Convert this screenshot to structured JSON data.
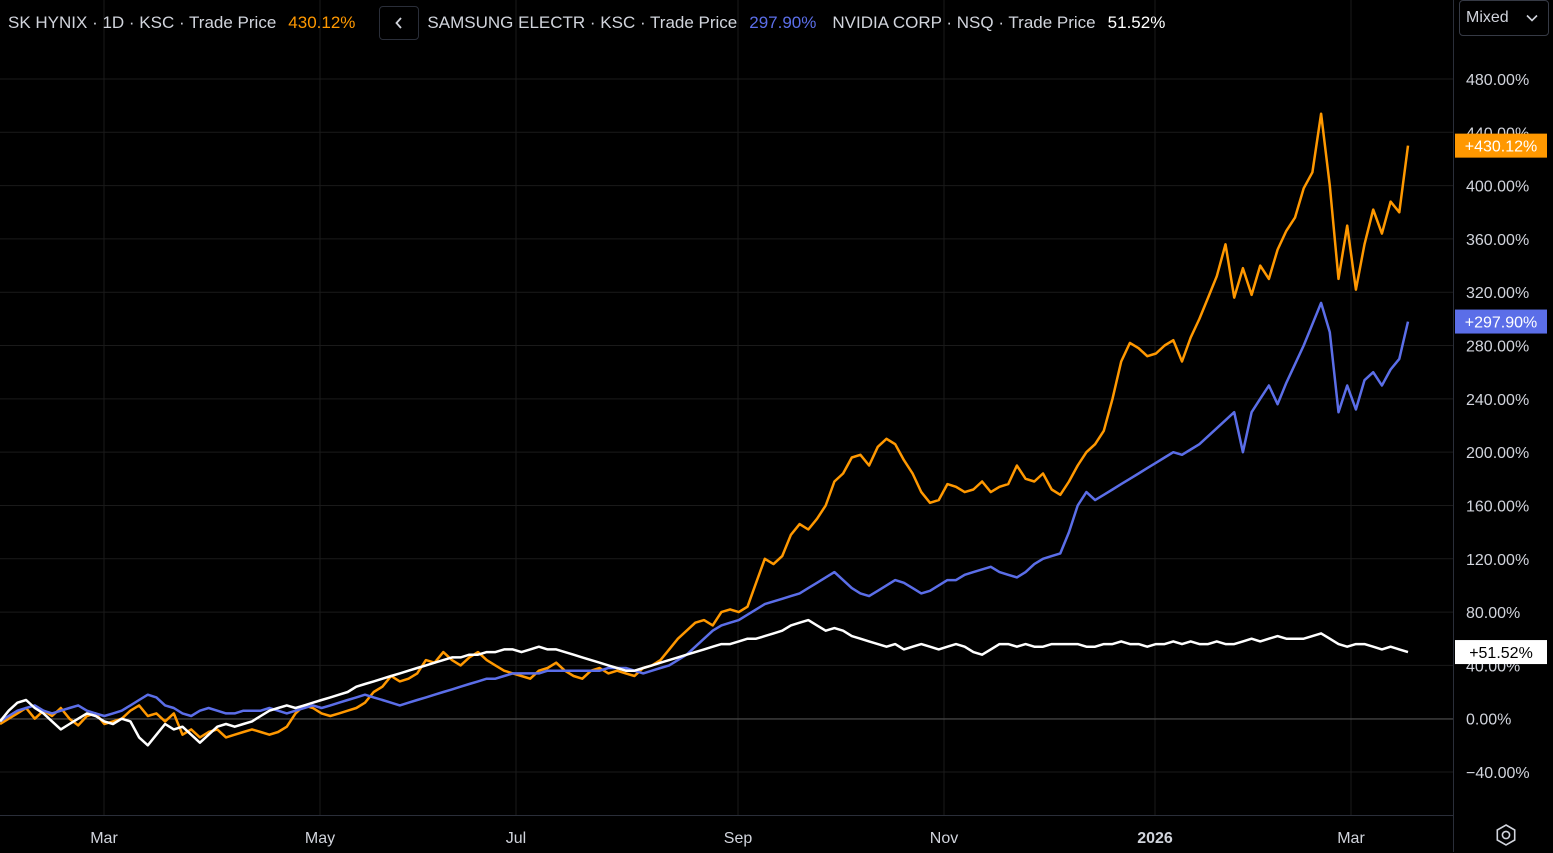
{
  "legend": {
    "series1_label": "SK HYNIX · 1D · KSC · Trade Price",
    "series1_value": "430.12%",
    "series2_label": "SAMSUNG ELECTR · KSC · Trade Price",
    "series2_value": "297.90%",
    "series3_label": "NVIDIA CORP · NSQ · Trade Price",
    "series3_value": "51.52%",
    "collapse_icon": "chevron-left-icon"
  },
  "scale_mode": {
    "label": "Mixed",
    "icon": "chevron-down-icon"
  },
  "settings": {
    "icon": "gear-icon"
  },
  "chart_data": {
    "type": "line",
    "x_labels": [
      "Mar",
      "May",
      "Jul",
      "Sep",
      "Nov",
      "2026",
      "Mar"
    ],
    "y_ticks": [
      "480.00%",
      "440.00%",
      "400.00%",
      "360.00%",
      "320.00%",
      "280.00%",
      "240.00%",
      "200.00%",
      "160.00%",
      "120.00%",
      "80.00%",
      "40.00%",
      "0.00%",
      "−40.00%"
    ],
    "ylim": [
      -60,
      520
    ],
    "grid": true,
    "series": [
      {
        "name": "SK HYNIX",
        "color": "#ff9800",
        "last_label": "+430.12%",
        "values": [
          -4,
          0,
          4,
          8,
          0,
          6,
          2,
          8,
          0,
          -5,
          2,
          4,
          -4,
          -2,
          0,
          6,
          10,
          2,
          4,
          -2,
          4,
          -12,
          -8,
          -14,
          -10,
          -8,
          -14,
          -12,
          -10,
          -8,
          -10,
          -12,
          -10,
          -6,
          4,
          10,
          8,
          4,
          2,
          4,
          6,
          8,
          12,
          20,
          24,
          32,
          28,
          30,
          34,
          44,
          42,
          50,
          44,
          40,
          46,
          50,
          44,
          40,
          36,
          34,
          32,
          30,
          36,
          38,
          42,
          36,
          32,
          30,
          36,
          38,
          34,
          36,
          34,
          32,
          38,
          40,
          44,
          52,
          60,
          66,
          72,
          74,
          70,
          80,
          82,
          80,
          84,
          102,
          120,
          116,
          122,
          138,
          146,
          142,
          150,
          160,
          178,
          184,
          196,
          198,
          190,
          204,
          210,
          206,
          194,
          184,
          170,
          162,
          164,
          176,
          174,
          170,
          172,
          178,
          170,
          174,
          176,
          190,
          180,
          178,
          184,
          172,
          168,
          178,
          190,
          200,
          206,
          216,
          240,
          268,
          282,
          278,
          272,
          274,
          280,
          284,
          268,
          286,
          300,
          316,
          332,
          356,
          316,
          338,
          318,
          340,
          330,
          352,
          366,
          376,
          398,
          410,
          454,
          400,
          330,
          370,
          322,
          356,
          382,
          364,
          388,
          380,
          430
        ]
      },
      {
        "name": "SAMSUNG ELECTR",
        "color": "#5b6ee8",
        "last_label": "+297.90%",
        "values": [
          -2,
          2,
          6,
          8,
          10,
          6,
          4,
          6,
          8,
          10,
          6,
          4,
          2,
          4,
          6,
          10,
          14,
          18,
          16,
          10,
          8,
          4,
          2,
          6,
          8,
          6,
          4,
          4,
          6,
          6,
          6,
          8,
          6,
          4,
          6,
          8,
          10,
          8,
          10,
          12,
          14,
          16,
          18,
          16,
          14,
          12,
          10,
          12,
          14,
          16,
          18,
          20,
          22,
          24,
          26,
          28,
          30,
          30,
          32,
          34,
          34,
          34,
          34,
          36,
          36,
          36,
          36,
          36,
          36,
          36,
          38,
          38,
          38,
          36,
          34,
          36,
          38,
          40,
          44,
          48,
          54,
          60,
          66,
          70,
          72,
          74,
          78,
          82,
          86,
          88,
          90,
          92,
          94,
          98,
          102,
          106,
          110,
          104,
          98,
          94,
          92,
          96,
          100,
          104,
          102,
          98,
          94,
          96,
          100,
          104,
          104,
          108,
          110,
          112,
          114,
          110,
          108,
          106,
          110,
          116,
          120,
          122,
          124,
          140,
          160,
          170,
          164,
          168,
          172,
          176,
          180,
          184,
          188,
          192,
          196,
          200,
          198,
          202,
          206,
          212,
          218,
          224,
          230,
          200,
          230,
          240,
          250,
          236,
          252,
          266,
          280,
          296,
          312,
          290,
          230,
          250,
          232,
          254,
          260,
          250,
          262,
          270,
          298
        ]
      },
      {
        "name": "NVIDIA CORP",
        "color": "#ffffff",
        "last_label": "+51.52%",
        "values": [
          -2,
          6,
          12,
          14,
          8,
          4,
          -2,
          -8,
          -4,
          0,
          4,
          2,
          -2,
          -4,
          0,
          -2,
          -14,
          -20,
          -12,
          -4,
          -8,
          -6,
          -12,
          -18,
          -12,
          -6,
          -4,
          -6,
          -4,
          -2,
          2,
          6,
          8,
          10,
          8,
          10,
          12,
          14,
          16,
          18,
          20,
          24,
          26,
          28,
          30,
          32,
          34,
          36,
          38,
          40,
          42,
          44,
          46,
          46,
          48,
          48,
          50,
          50,
          52,
          52,
          50,
          52,
          54,
          52,
          52,
          50,
          48,
          46,
          44,
          42,
          40,
          38,
          36,
          36,
          38,
          40,
          42,
          44,
          46,
          48,
          50,
          52,
          54,
          56,
          56,
          58,
          60,
          60,
          62,
          64,
          66,
          70,
          72,
          74,
          70,
          66,
          68,
          66,
          62,
          60,
          58,
          56,
          54,
          56,
          52,
          54,
          56,
          54,
          52,
          54,
          56,
          54,
          50,
          48,
          52,
          56,
          56,
          54,
          56,
          54,
          54,
          56,
          56,
          56,
          56,
          54,
          54,
          56,
          56,
          58,
          56,
          56,
          54,
          56,
          56,
          58,
          56,
          58,
          56,
          56,
          58,
          56,
          56,
          58,
          60,
          58,
          60,
          62,
          60,
          60,
          60,
          62,
          64,
          60,
          56,
          54,
          56,
          56,
          54,
          52,
          54,
          52,
          50
        ]
      }
    ]
  }
}
